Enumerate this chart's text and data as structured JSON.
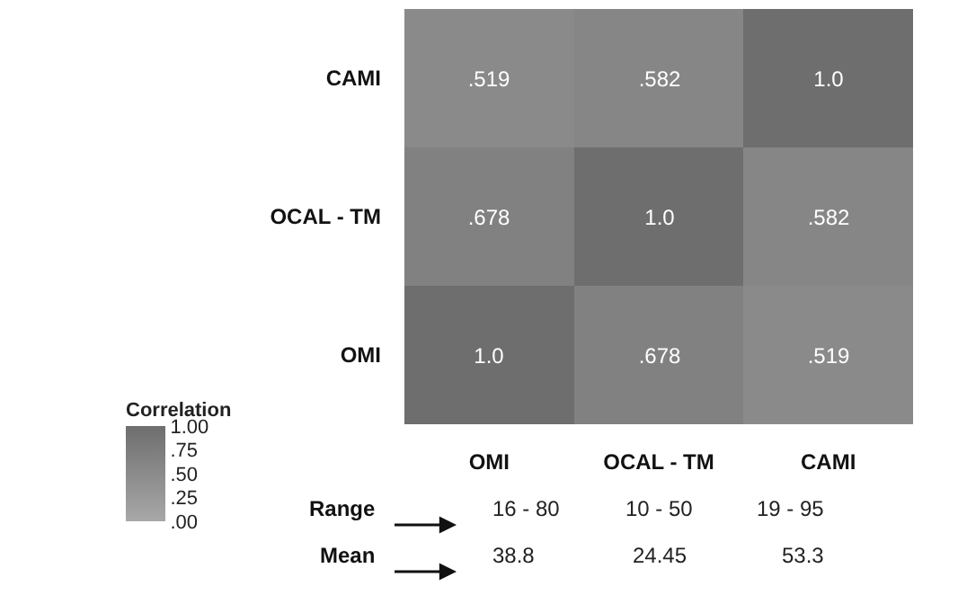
{
  "chart_data": {
    "type": "heatmap",
    "categories": [
      "OMI",
      "OCAL - TM",
      "CAMI"
    ],
    "y_categories": [
      "CAMI",
      "OCAL - TM",
      "OMI"
    ],
    "cells": [
      [
        0.519,
        0.582,
        1.0
      ],
      [
        0.678,
        1.0,
        0.582
      ],
      [
        1.0,
        0.678,
        0.519
      ]
    ],
    "cell_labels": [
      [
        ".519",
        ".582",
        "1.0"
      ],
      [
        ".678",
        "1.0",
        ".582"
      ],
      [
        "1.0",
        ".678",
        ".519"
      ]
    ],
    "clabel": "Correlation",
    "clim": [
      0,
      1
    ],
    "cticks": [
      {
        "value": 1,
        "label": "1.00"
      },
      {
        "value": 0.75,
        "label": ".75"
      },
      {
        "value": 0.5,
        "label": ".50"
      },
      {
        "value": 0.25,
        "label": ".25"
      },
      {
        "value": 0,
        "label": ".00"
      }
    ],
    "annotations": [
      "Range",
      "16 - 80",
      "10 - 50",
      "19 - 95",
      "Mean",
      "38.8",
      "24.45",
      "53.3"
    ]
  }
}
